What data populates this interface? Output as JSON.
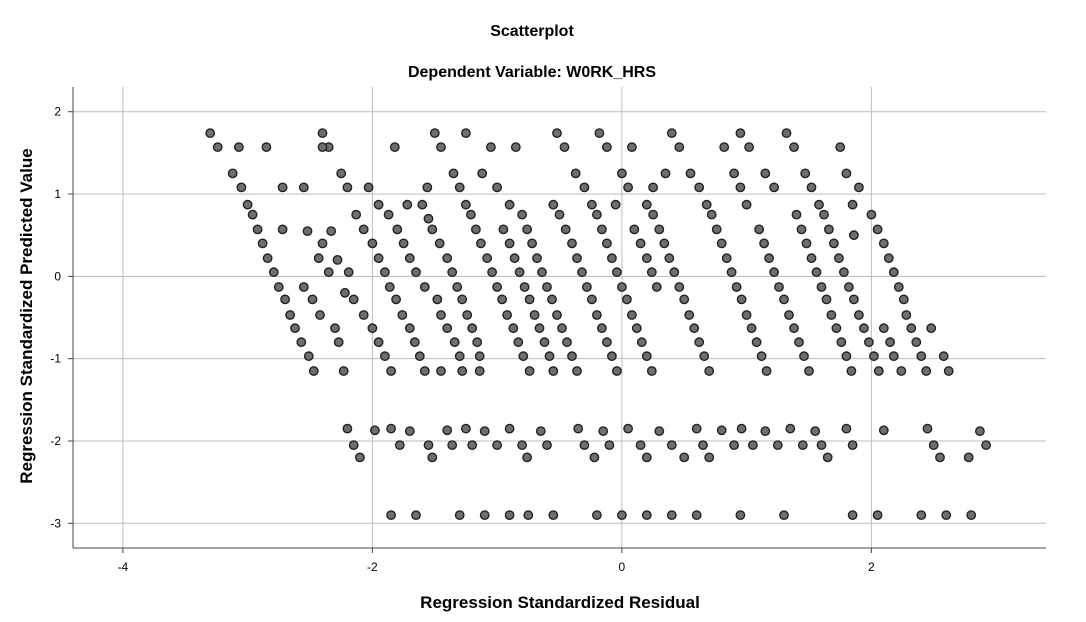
{
  "chart_data": {
    "type": "scatter",
    "title": "Scatterplot",
    "subtitle": "Dependent Variable: W0RK_HRS",
    "xlabel": "Regression Standardized Residual",
    "ylabel": "Regression Standardized Predicted Value",
    "xlim": [
      -4.4,
      3.4
    ],
    "ylim": [
      -3.3,
      2.3
    ],
    "x_ticks": [
      -4,
      -2,
      0,
      2
    ],
    "x_tick_labels": [
      "-4",
      "-2",
      "0",
      "2"
    ],
    "y_ticks": [
      2,
      1,
      0,
      -1,
      -2,
      -3
    ],
    "y_tick_labels": [
      "2",
      "1",
      "0",
      "-1",
      "-2",
      "-3"
    ],
    "grid": true,
    "legend": "none",
    "points": [
      [
        -3.3,
        1.74
      ],
      [
        -3.24,
        1.57
      ],
      [
        -3.12,
        1.25
      ],
      [
        -3.05,
        1.08
      ],
      [
        -3.0,
        0.87
      ],
      [
        -2.96,
        0.75
      ],
      [
        -2.92,
        0.57
      ],
      [
        -2.88,
        0.4
      ],
      [
        -2.84,
        0.22
      ],
      [
        -2.79,
        0.05
      ],
      [
        -2.75,
        -0.13
      ],
      [
        -2.7,
        -0.28
      ],
      [
        -2.66,
        -0.47
      ],
      [
        -2.62,
        -0.63
      ],
      [
        -2.57,
        -0.8
      ],
      [
        -2.51,
        -0.97
      ],
      [
        -2.47,
        -1.15
      ],
      [
        -2.85,
        1.57
      ],
      [
        -3.07,
        1.57
      ],
      [
        -2.72,
        1.08
      ],
      [
        -2.55,
        1.08
      ],
      [
        -2.72,
        0.57
      ],
      [
        -2.52,
        0.55
      ],
      [
        -2.4,
        1.74
      ],
      [
        -2.35,
        1.57
      ],
      [
        -2.25,
        1.25
      ],
      [
        -2.2,
        1.08
      ],
      [
        -2.13,
        0.75
      ],
      [
        -2.07,
        0.57
      ],
      [
        -2.0,
        0.4
      ],
      [
        -1.95,
        0.22
      ],
      [
        -1.9,
        0.05
      ],
      [
        -1.86,
        -0.13
      ],
      [
        -1.81,
        -0.28
      ],
      [
        -1.76,
        -0.47
      ],
      [
        -1.7,
        -0.63
      ],
      [
        -1.66,
        -0.8
      ],
      [
        -1.62,
        -0.97
      ],
      [
        -1.58,
        -1.15
      ],
      [
        -2.4,
        0.4
      ],
      [
        -2.33,
        0.55
      ],
      [
        -2.28,
        0.2
      ],
      [
        -2.19,
        0.05
      ],
      [
        -2.22,
        -0.2
      ],
      [
        -2.15,
        -0.28
      ],
      [
        -2.07,
        -0.47
      ],
      [
        -2.0,
        -0.63
      ],
      [
        -1.95,
        -0.8
      ],
      [
        -1.9,
        -0.97
      ],
      [
        -1.85,
        -1.15
      ],
      [
        -2.55,
        -0.13
      ],
      [
        -2.48,
        -0.28
      ],
      [
        -2.42,
        -0.47
      ],
      [
        -2.3,
        -0.63
      ],
      [
        -2.27,
        -0.8
      ],
      [
        -2.23,
        -1.15
      ],
      [
        -2.35,
        0.05
      ],
      [
        -2.43,
        0.22
      ],
      [
        -1.7,
        0.22
      ],
      [
        -1.75,
        0.4
      ],
      [
        -1.8,
        0.57
      ],
      [
        -1.87,
        0.75
      ],
      [
        -1.95,
        0.87
      ],
      [
        -2.03,
        1.08
      ],
      [
        -1.82,
        1.57
      ],
      [
        -2.4,
        1.57
      ],
      [
        -1.56,
        1.08
      ],
      [
        -1.72,
        0.87
      ],
      [
        -1.5,
        1.74
      ],
      [
        -1.45,
        1.57
      ],
      [
        -1.35,
        1.25
      ],
      [
        -1.3,
        1.08
      ],
      [
        -1.25,
        0.87
      ],
      [
        -1.21,
        0.75
      ],
      [
        -1.17,
        0.57
      ],
      [
        -1.13,
        0.4
      ],
      [
        -1.08,
        0.22
      ],
      [
        -1.04,
        0.05
      ],
      [
        -1.0,
        -0.13
      ],
      [
        -0.96,
        -0.28
      ],
      [
        -0.92,
        -0.47
      ],
      [
        -0.87,
        -0.63
      ],
      [
        -0.83,
        -0.8
      ],
      [
        -0.79,
        -0.97
      ],
      [
        -0.74,
        -1.15
      ],
      [
        -1.52,
        0.57
      ],
      [
        -1.46,
        0.4
      ],
      [
        -1.4,
        0.22
      ],
      [
        -1.36,
        0.05
      ],
      [
        -1.32,
        -0.13
      ],
      [
        -1.28,
        -0.28
      ],
      [
        -1.24,
        -0.47
      ],
      [
        -1.2,
        -0.63
      ],
      [
        -1.16,
        -0.8
      ],
      [
        -1.14,
        -0.97
      ],
      [
        -1.14,
        -1.15
      ],
      [
        -1.6,
        0.87
      ],
      [
        -1.55,
        0.7
      ],
      [
        -1.65,
        0.05
      ],
      [
        -1.58,
        -0.13
      ],
      [
        -1.48,
        -0.28
      ],
      [
        -1.45,
        -0.47
      ],
      [
        -1.4,
        -0.63
      ],
      [
        -1.34,
        -0.8
      ],
      [
        -1.3,
        -0.97
      ],
      [
        -1.28,
        -1.15
      ],
      [
        -1.45,
        -1.15
      ],
      [
        -1.25,
        1.74
      ],
      [
        -1.05,
        1.57
      ],
      [
        -0.85,
        1.57
      ],
      [
        -1.12,
        1.25
      ],
      [
        -1.0,
        1.08
      ],
      [
        -0.9,
        0.87
      ],
      [
        -0.8,
        0.75
      ],
      [
        -0.76,
        0.57
      ],
      [
        -0.72,
        0.4
      ],
      [
        -0.68,
        0.22
      ],
      [
        -0.64,
        0.05
      ],
      [
        -0.6,
        -0.13
      ],
      [
        -0.56,
        -0.28
      ],
      [
        -0.52,
        -0.47
      ],
      [
        -0.48,
        -0.63
      ],
      [
        -0.44,
        -0.8
      ],
      [
        -0.4,
        -0.97
      ],
      [
        -0.36,
        -1.15
      ],
      [
        -0.52,
        1.74
      ],
      [
        -0.46,
        1.57
      ],
      [
        -0.37,
        1.25
      ],
      [
        -0.3,
        1.08
      ],
      [
        -0.24,
        0.87
      ],
      [
        -0.2,
        0.75
      ],
      [
        -0.16,
        0.57
      ],
      [
        -0.12,
        0.4
      ],
      [
        -0.08,
        0.22
      ],
      [
        -0.04,
        0.05
      ],
      [
        0.0,
        -0.13
      ],
      [
        0.04,
        -0.28
      ],
      [
        0.08,
        -0.47
      ],
      [
        0.12,
        -0.63
      ],
      [
        0.16,
        -0.8
      ],
      [
        0.2,
        -0.97
      ],
      [
        0.24,
        -1.15
      ],
      [
        -0.95,
        0.57
      ],
      [
        -0.9,
        0.4
      ],
      [
        -0.86,
        0.22
      ],
      [
        -0.82,
        0.05
      ],
      [
        -0.78,
        -0.13
      ],
      [
        -0.74,
        -0.28
      ],
      [
        -0.7,
        -0.47
      ],
      [
        -0.66,
        -0.63
      ],
      [
        -0.62,
        -0.8
      ],
      [
        -0.58,
        -0.97
      ],
      [
        -0.55,
        -1.15
      ],
      [
        -0.55,
        0.87
      ],
      [
        -0.5,
        0.75
      ],
      [
        -0.45,
        0.57
      ],
      [
        -0.4,
        0.4
      ],
      [
        -0.36,
        0.22
      ],
      [
        -0.32,
        0.05
      ],
      [
        -0.28,
        -0.13
      ],
      [
        -0.24,
        -0.28
      ],
      [
        -0.2,
        -0.47
      ],
      [
        -0.16,
        -0.63
      ],
      [
        -0.12,
        -0.8
      ],
      [
        -0.08,
        -0.97
      ],
      [
        -0.04,
        -1.15
      ],
      [
        -0.18,
        1.74
      ],
      [
        -0.12,
        1.57
      ],
      [
        0.08,
        1.57
      ],
      [
        0.0,
        1.25
      ],
      [
        0.05,
        1.08
      ],
      [
        0.4,
        1.74
      ],
      [
        0.46,
        1.57
      ],
      [
        0.55,
        1.25
      ],
      [
        0.62,
        1.08
      ],
      [
        0.68,
        0.87
      ],
      [
        0.72,
        0.75
      ],
      [
        0.76,
        0.57
      ],
      [
        0.8,
        0.4
      ],
      [
        0.84,
        0.22
      ],
      [
        0.88,
        0.05
      ],
      [
        0.92,
        -0.13
      ],
      [
        0.96,
        -0.28
      ],
      [
        1.0,
        -0.47
      ],
      [
        1.04,
        -0.63
      ],
      [
        1.08,
        -0.8
      ],
      [
        1.12,
        -0.97
      ],
      [
        1.16,
        -1.15
      ],
      [
        0.2,
        0.87
      ],
      [
        0.25,
        0.75
      ],
      [
        0.3,
        0.57
      ],
      [
        0.34,
        0.4
      ],
      [
        0.38,
        0.22
      ],
      [
        0.42,
        0.05
      ],
      [
        0.46,
        -0.13
      ],
      [
        0.5,
        -0.28
      ],
      [
        0.54,
        -0.47
      ],
      [
        0.58,
        -0.63
      ],
      [
        0.62,
        -0.8
      ],
      [
        0.66,
        -0.97
      ],
      [
        0.7,
        -1.15
      ],
      [
        0.25,
        1.08
      ],
      [
        0.35,
        1.25
      ],
      [
        -0.05,
        0.87
      ],
      [
        0.1,
        0.57
      ],
      [
        0.15,
        0.4
      ],
      [
        0.2,
        0.22
      ],
      [
        0.24,
        0.05
      ],
      [
        0.28,
        -0.13
      ],
      [
        0.9,
        1.25
      ],
      [
        0.95,
        1.08
      ],
      [
        1.0,
        0.87
      ],
      [
        0.82,
        1.57
      ],
      [
        0.95,
        1.74
      ],
      [
        1.02,
        1.57
      ],
      [
        1.15,
        1.25
      ],
      [
        1.22,
        1.08
      ],
      [
        1.32,
        1.74
      ],
      [
        1.38,
        1.57
      ],
      [
        1.47,
        1.25
      ],
      [
        1.52,
        1.08
      ],
      [
        1.58,
        0.87
      ],
      [
        1.62,
        0.75
      ],
      [
        1.66,
        0.57
      ],
      [
        1.7,
        0.4
      ],
      [
        1.74,
        0.22
      ],
      [
        1.78,
        0.05
      ],
      [
        1.82,
        -0.13
      ],
      [
        1.86,
        -0.28
      ],
      [
        1.9,
        -0.47
      ],
      [
        1.94,
        -0.63
      ],
      [
        1.98,
        -0.8
      ],
      [
        2.02,
        -0.97
      ],
      [
        2.06,
        -1.15
      ],
      [
        1.1,
        0.57
      ],
      [
        1.14,
        0.4
      ],
      [
        1.18,
        0.22
      ],
      [
        1.22,
        0.05
      ],
      [
        1.26,
        -0.13
      ],
      [
        1.3,
        -0.28
      ],
      [
        1.34,
        -0.47
      ],
      [
        1.38,
        -0.63
      ],
      [
        1.42,
        -0.8
      ],
      [
        1.46,
        -0.97
      ],
      [
        1.5,
        -1.15
      ],
      [
        1.4,
        0.75
      ],
      [
        1.44,
        0.57
      ],
      [
        1.48,
        0.4
      ],
      [
        1.52,
        0.22
      ],
      [
        1.56,
        0.05
      ],
      [
        1.6,
        -0.13
      ],
      [
        1.64,
        -0.28
      ],
      [
        1.68,
        -0.47
      ],
      [
        1.72,
        -0.63
      ],
      [
        1.76,
        -0.8
      ],
      [
        1.8,
        -0.97
      ],
      [
        1.84,
        -1.15
      ],
      [
        1.75,
        1.57
      ],
      [
        1.8,
        1.25
      ],
      [
        1.9,
        1.08
      ],
      [
        1.85,
        0.87
      ],
      [
        2.0,
        0.75
      ],
      [
        2.05,
        0.57
      ],
      [
        2.1,
        0.4
      ],
      [
        2.14,
        0.22
      ],
      [
        2.18,
        0.05
      ],
      [
        2.22,
        -0.13
      ],
      [
        2.26,
        -0.28
      ],
      [
        2.28,
        -0.47
      ],
      [
        2.32,
        -0.63
      ],
      [
        2.36,
        -0.8
      ],
      [
        2.4,
        -0.97
      ],
      [
        2.44,
        -1.15
      ],
      [
        2.48,
        -0.63
      ],
      [
        2.58,
        -0.97
      ],
      [
        2.62,
        -1.15
      ],
      [
        1.86,
        0.5
      ],
      [
        2.1,
        -0.63
      ],
      [
        2.15,
        -0.8
      ],
      [
        2.18,
        -0.97
      ],
      [
        2.24,
        -1.15
      ],
      [
        -2.2,
        -1.85
      ],
      [
        -2.15,
        -2.05
      ],
      [
        -2.1,
        -2.2
      ],
      [
        -1.98,
        -1.87
      ],
      [
        -1.85,
        -1.85
      ],
      [
        -1.78,
        -2.05
      ],
      [
        -1.7,
        -1.88
      ],
      [
        -1.55,
        -2.05
      ],
      [
        -1.52,
        -2.2
      ],
      [
        -1.4,
        -1.87
      ],
      [
        -1.36,
        -2.05
      ],
      [
        -1.25,
        -1.85
      ],
      [
        -1.2,
        -2.05
      ],
      [
        -1.1,
        -1.88
      ],
      [
        -1.0,
        -2.05
      ],
      [
        -0.9,
        -1.85
      ],
      [
        -0.8,
        -2.05
      ],
      [
        -0.76,
        -2.2
      ],
      [
        -0.65,
        -1.88
      ],
      [
        -0.6,
        -2.05
      ],
      [
        -0.35,
        -1.85
      ],
      [
        -0.3,
        -2.05
      ],
      [
        -0.22,
        -2.2
      ],
      [
        -0.15,
        -1.88
      ],
      [
        -0.1,
        -2.05
      ],
      [
        0.05,
        -1.85
      ],
      [
        0.15,
        -2.05
      ],
      [
        0.2,
        -2.2
      ],
      [
        0.3,
        -1.88
      ],
      [
        0.4,
        -2.05
      ],
      [
        0.5,
        -2.2
      ],
      [
        0.6,
        -1.85
      ],
      [
        0.65,
        -2.05
      ],
      [
        0.7,
        -2.2
      ],
      [
        0.8,
        -1.87
      ],
      [
        0.9,
        -2.05
      ],
      [
        0.96,
        -1.85
      ],
      [
        1.05,
        -2.05
      ],
      [
        1.15,
        -1.88
      ],
      [
        1.25,
        -2.05
      ],
      [
        1.35,
        -1.85
      ],
      [
        1.45,
        -2.05
      ],
      [
        1.55,
        -1.88
      ],
      [
        1.6,
        -2.05
      ],
      [
        1.65,
        -2.2
      ],
      [
        1.8,
        -1.85
      ],
      [
        1.85,
        -2.05
      ],
      [
        2.1,
        -1.87
      ],
      [
        2.45,
        -1.85
      ],
      [
        2.5,
        -2.05
      ],
      [
        2.55,
        -2.2
      ],
      [
        2.78,
        -2.2
      ],
      [
        2.87,
        -1.88
      ],
      [
        2.92,
        -2.05
      ],
      [
        -1.85,
        -2.9
      ],
      [
        -1.65,
        -2.9
      ],
      [
        -1.3,
        -2.9
      ],
      [
        -1.1,
        -2.9
      ],
      [
        -0.9,
        -2.9
      ],
      [
        -0.75,
        -2.9
      ],
      [
        -0.55,
        -2.9
      ],
      [
        -0.2,
        -2.9
      ],
      [
        0.0,
        -2.9
      ],
      [
        0.2,
        -2.9
      ],
      [
        0.4,
        -2.9
      ],
      [
        0.6,
        -2.9
      ],
      [
        0.95,
        -2.9
      ],
      [
        1.3,
        -2.9
      ],
      [
        1.85,
        -2.9
      ],
      [
        2.05,
        -2.9
      ],
      [
        2.4,
        -2.9
      ],
      [
        2.6,
        -2.9
      ],
      [
        2.8,
        -2.9
      ]
    ]
  }
}
